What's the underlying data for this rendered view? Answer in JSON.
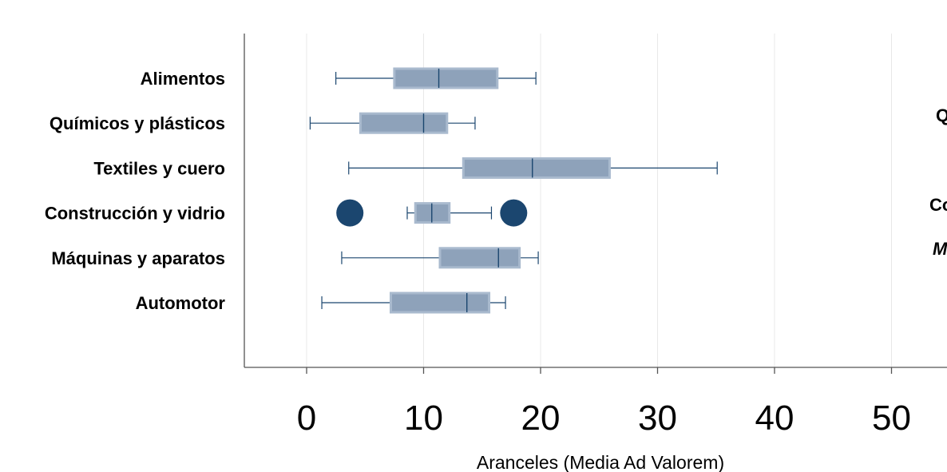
{
  "chart_data": {
    "type": "boxplot",
    "orientation": "horizontal",
    "categories": [
      "Alimentos",
      "Químicos y plásticos",
      "Textiles y cuero",
      "Construcción y vidrio",
      "Máquinas y aparatos",
      "Automotor"
    ],
    "boxes": [
      {
        "category": "Alimentos",
        "whisker_low": 2.5,
        "q1": 7.5,
        "median": 11.3,
        "q3": 16.3,
        "whisker_high": 19.6,
        "outliers": []
      },
      {
        "category": "Químicos y plásticos",
        "whisker_low": 0.3,
        "q1": 4.6,
        "median": 10.0,
        "q3": 12.0,
        "whisker_high": 14.4,
        "outliers": []
      },
      {
        "category": "Textiles y cuero",
        "whisker_low": 3.6,
        "q1": 13.4,
        "median": 19.3,
        "q3": 25.9,
        "whisker_high": 35.1,
        "outliers": []
      },
      {
        "category": "Construcción y vidrio",
        "whisker_low": 8.6,
        "q1": 9.3,
        "median": 10.7,
        "q3": 12.2,
        "whisker_high": 15.8,
        "outliers": [
          3.7,
          17.7
        ]
      },
      {
        "category": "Máquinas y aparatos",
        "whisker_low": 3.0,
        "q1": 11.4,
        "median": 16.4,
        "q3": 18.2,
        "whisker_high": 19.8,
        "outliers": []
      },
      {
        "category": "Automotor",
        "whisker_low": 1.3,
        "q1": 7.2,
        "median": 13.7,
        "q3": 15.6,
        "whisker_high": 17.0,
        "outliers": []
      }
    ],
    "x_ticks": [
      "0",
      "10",
      "20",
      "30",
      "40",
      "50"
    ],
    "x_tick_values": [
      0,
      10,
      20,
      30,
      40,
      50
    ],
    "xlabel": "Aranceles (Media Ad Valorem)",
    "ylabel": "",
    "xlim": [
      -5.3,
      55.2
    ],
    "grid": "vertical",
    "colors": {
      "box_fill": "#8ea2ba",
      "box_edge": "#a9bace",
      "lines": "#1b466f",
      "outlier": "#1b466f",
      "grid": "#e8e8e8"
    }
  },
  "clipped_labels": [
    "Q",
    "Co",
    "M"
  ]
}
